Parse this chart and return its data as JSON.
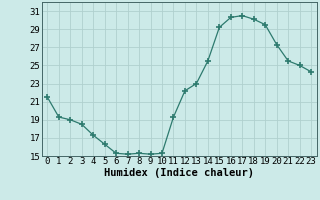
{
  "x": [
    0,
    1,
    2,
    3,
    4,
    5,
    6,
    7,
    8,
    9,
    10,
    11,
    12,
    13,
    14,
    15,
    16,
    17,
    18,
    19,
    20,
    21,
    22,
    23
  ],
  "y": [
    21.5,
    19.3,
    19.0,
    18.5,
    17.3,
    16.3,
    15.3,
    15.2,
    15.3,
    15.2,
    15.3,
    19.3,
    22.2,
    23.0,
    25.5,
    29.2,
    30.3,
    30.5,
    30.1,
    29.5,
    27.3,
    25.5,
    25.0,
    24.3
  ],
  "line_color": "#2d7a6e",
  "marker": "+",
  "marker_size": 4,
  "marker_lw": 1.2,
  "bg_color": "#cceae8",
  "grid_color": "#b0d0ce",
  "xlabel": "Humidex (Indice chaleur)",
  "ylim": [
    15,
    32
  ],
  "xlim": [
    -0.5,
    23.5
  ],
  "yticks": [
    15,
    17,
    19,
    21,
    23,
    25,
    27,
    29,
    31
  ],
  "xticks": [
    0,
    1,
    2,
    3,
    4,
    5,
    6,
    7,
    8,
    9,
    10,
    11,
    12,
    13,
    14,
    15,
    16,
    17,
    18,
    19,
    20,
    21,
    22,
    23
  ],
  "tick_fontsize": 6.5,
  "xlabel_fontsize": 7.5,
  "line_width": 0.9
}
